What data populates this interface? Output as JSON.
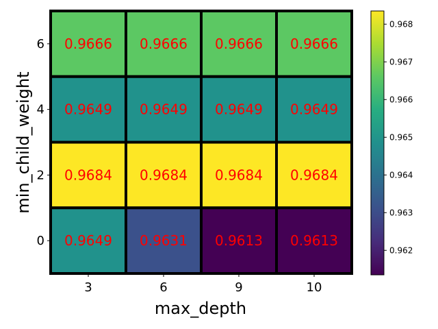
{
  "chart_data": {
    "type": "heatmap",
    "xlabel": "max_depth",
    "ylabel": "min_child_weight",
    "x_categories": [
      "3",
      "6",
      "9",
      "10"
    ],
    "y_categories": [
      "6",
      "4",
      "2",
      "0"
    ],
    "values": [
      [
        0.9666,
        0.9666,
        0.9666,
        0.9666
      ],
      [
        0.9649,
        0.9649,
        0.9649,
        0.9649
      ],
      [
        0.9684,
        0.9684,
        0.9684,
        0.9684
      ],
      [
        0.9649,
        0.9631,
        0.9613,
        0.9613
      ]
    ],
    "cell_labels": [
      [
        "0.9666",
        "0.9666",
        "0.9666",
        "0.9666"
      ],
      [
        "0.9649",
        "0.9649",
        "0.9649",
        "0.9649"
      ],
      [
        "0.9684",
        "0.9684",
        "0.9684",
        "0.9684"
      ],
      [
        "0.9649",
        "0.9631",
        "0.9613",
        "0.9613"
      ]
    ],
    "colormap": "viridis",
    "color_range": [
      0.96135,
      0.96835
    ],
    "colorbar_ticks": [
      "0.962",
      "0.963",
      "0.964",
      "0.965",
      "0.966",
      "0.967",
      "0.968"
    ],
    "colorbar_tick_values": [
      0.962,
      0.963,
      0.964,
      0.965,
      0.966,
      0.967,
      0.968
    ],
    "annotation_color": "#ff0000",
    "cell_border_color": "#000000"
  }
}
